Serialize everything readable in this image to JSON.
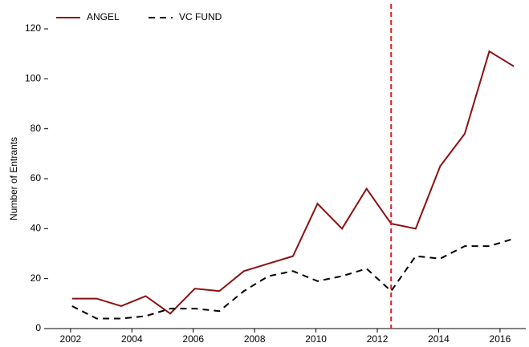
{
  "chart_data": {
    "type": "line",
    "y_label": "Number of Entrants",
    "x": [
      2002.05,
      2002.85,
      2003.65,
      2004.45,
      2005.25,
      2006.05,
      2006.85,
      2007.65,
      2008.45,
      2009.25,
      2010.05,
      2010.85,
      2011.65,
      2012.45,
      2013.25,
      2014.05,
      2014.85,
      2015.65,
      2016.45
    ],
    "series": [
      {
        "name": "ANGEL",
        "color": "#8b1111",
        "dash": "solid",
        "values": [
          12,
          12,
          9,
          13,
          6,
          16,
          15,
          23,
          26,
          29,
          50,
          40,
          56,
          42,
          40,
          65,
          78,
          111,
          105
        ]
      },
      {
        "name": "VC FUND",
        "color": "#000000",
        "dash": "dashed",
        "values": [
          9,
          4,
          4,
          5,
          8,
          8,
          7,
          15,
          21,
          23,
          19,
          21,
          24,
          15,
          29,
          28,
          33,
          33,
          36
        ]
      }
    ],
    "vline": {
      "x": 2012.45,
      "color": "#e31a1c"
    },
    "xlim": [
      2001.27,
      2016.84
    ],
    "xticks": [
      2002,
      2004,
      2006,
      2008,
      2010,
      2012,
      2014,
      2016
    ],
    "ylim": [
      0,
      126
    ],
    "yticks": [
      0,
      20,
      40,
      60,
      80,
      100,
      120
    ],
    "legend": "top-left"
  }
}
